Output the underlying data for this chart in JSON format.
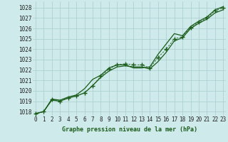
{
  "title": "Graphe pression niveau de la mer (hPa)",
  "background_color": "#ceeaea",
  "grid_color": "#a8cccc",
  "line_color": "#1a5c1a",
  "xlim": [
    -0.3,
    23.3
  ],
  "ylim": [
    1017.6,
    1028.6
  ],
  "xticks": [
    0,
    1,
    2,
    3,
    4,
    5,
    6,
    7,
    8,
    9,
    10,
    11,
    12,
    13,
    14,
    15,
    16,
    17,
    18,
    19,
    20,
    21,
    22,
    23
  ],
  "yticks": [
    1018,
    1019,
    1020,
    1021,
    1022,
    1023,
    1024,
    1025,
    1026,
    1027,
    1028
  ],
  "series_solid1_x": [
    0,
    1,
    2,
    3,
    4,
    5,
    6,
    7,
    8,
    9,
    10,
    11,
    12,
    13,
    14,
    15,
    16,
    17,
    18,
    19,
    20,
    21,
    22,
    23
  ],
  "series_solid1_y": [
    1017.8,
    1018.0,
    1019.1,
    1019.0,
    1019.3,
    1019.5,
    1019.8,
    1020.5,
    1021.3,
    1021.9,
    1022.3,
    1022.4,
    1022.3,
    1022.3,
    1022.1,
    1022.8,
    1023.7,
    1024.8,
    1025.1,
    1026.0,
    1026.5,
    1026.9,
    1027.5,
    1027.8
  ],
  "series_solid2_x": [
    0,
    1,
    2,
    3,
    4,
    5,
    6,
    7,
    8,
    9,
    10,
    11,
    12,
    13,
    14,
    15,
    16,
    17,
    18,
    19,
    20,
    21,
    22,
    23
  ],
  "series_solid2_y": [
    1017.8,
    1018.0,
    1019.2,
    1019.1,
    1019.4,
    1019.6,
    1020.2,
    1021.1,
    1021.5,
    1022.2,
    1022.5,
    1022.5,
    1022.2,
    1022.2,
    1022.3,
    1023.5,
    1024.5,
    1025.5,
    1025.3,
    1026.2,
    1026.7,
    1027.1,
    1027.8,
    1028.1
  ],
  "series_dashed_x": [
    0,
    1,
    2,
    3,
    4,
    5,
    6,
    7,
    8,
    9,
    10,
    11,
    12,
    13,
    14,
    15,
    16,
    17,
    18,
    19,
    20,
    21,
    22,
    23
  ],
  "series_dashed_y": [
    1017.8,
    1018.0,
    1019.2,
    1019.0,
    1019.3,
    1019.5,
    1019.8,
    1020.5,
    1021.4,
    1022.1,
    1022.5,
    1022.6,
    1022.5,
    1022.5,
    1022.2,
    1023.2,
    1024.0,
    1025.0,
    1025.2,
    1026.1,
    1026.6,
    1027.0,
    1027.7,
    1028.0
  ],
  "tick_fontsize": 5.5,
  "label_fontsize": 6.0
}
